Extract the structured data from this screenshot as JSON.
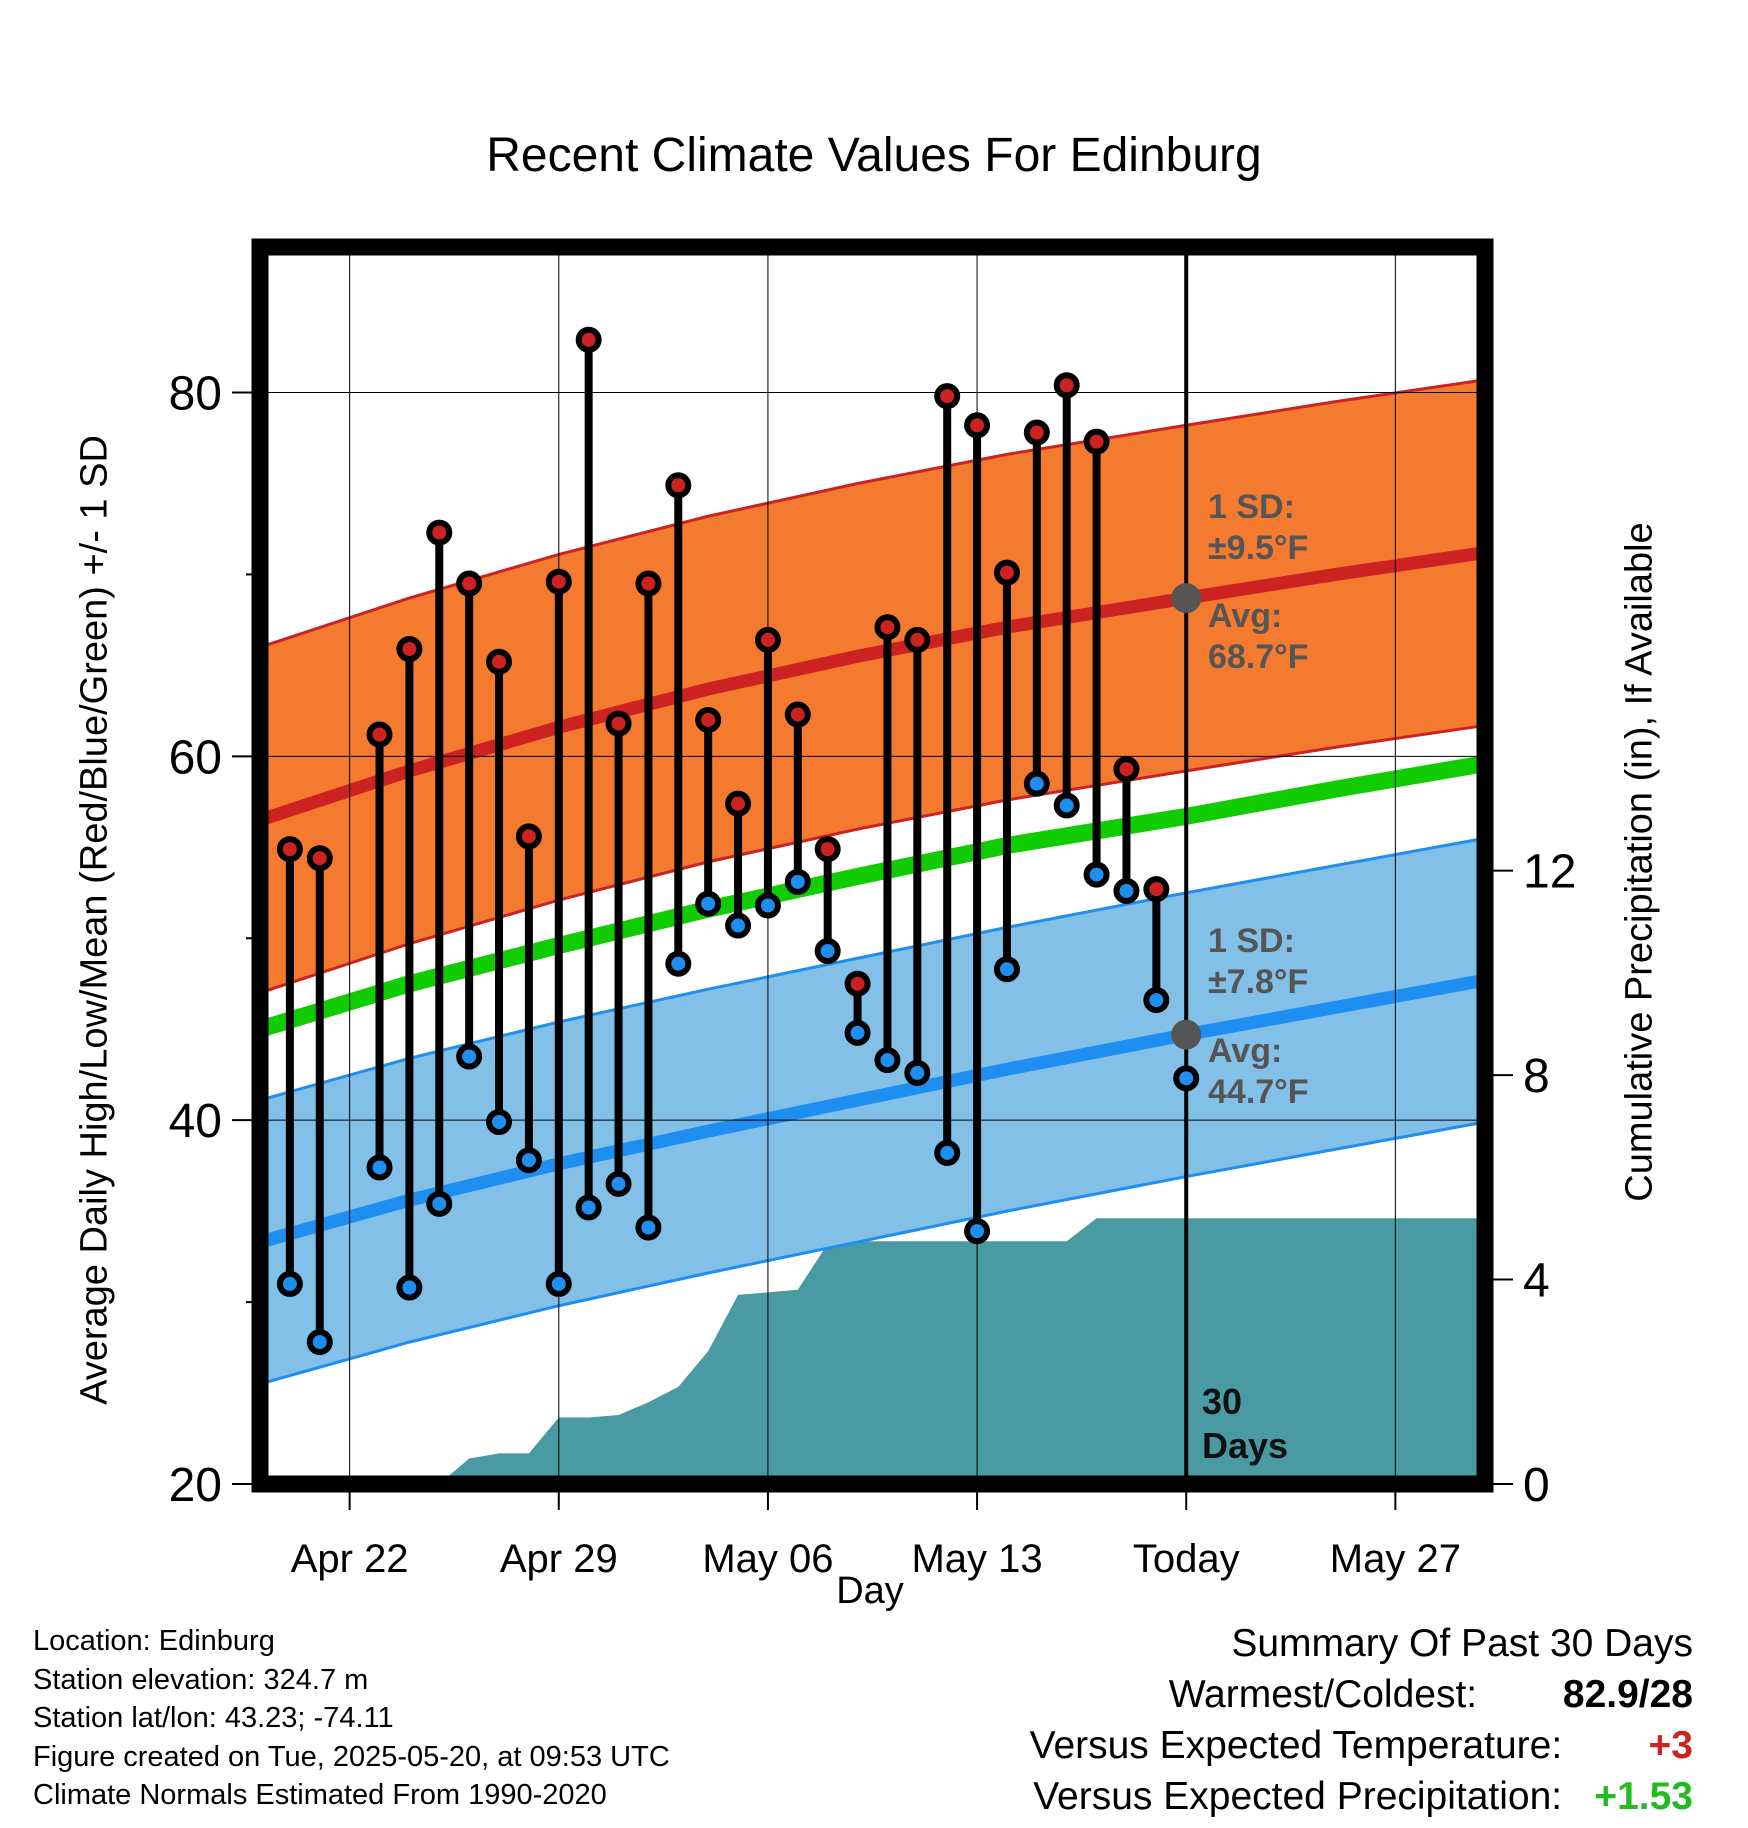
{
  "chart_data": {
    "type": "line",
    "title": "Recent Climate Values For Edinburg",
    "xlabel": "Day",
    "ylabel": "Average Daily High/Low/Mean (Red/Blue/Green) +/- 1 SD",
    "ylabel_right": "Cumulative Precipitation (in), If Available",
    "ylim": [
      20,
      88
    ],
    "ylim_right": [
      0,
      24.2
    ],
    "x_range_days": [
      "2025-04-19",
      "2025-05-30"
    ],
    "x_ticks": [
      {
        "date": "2025-04-22",
        "label": "Apr 22"
      },
      {
        "date": "2025-04-29",
        "label": "Apr 29"
      },
      {
        "date": "2025-05-06",
        "label": "May 06"
      },
      {
        "date": "2025-05-13",
        "label": "May 13"
      },
      {
        "date": "2025-05-20",
        "label": "Today"
      },
      {
        "date": "2025-05-27",
        "label": "May 27"
      }
    ],
    "y_ticks_left": [
      20,
      40,
      60,
      80
    ],
    "y_ticks_right": [
      0,
      4,
      8,
      12
    ],
    "grid": true,
    "today": "2025-05-20",
    "today_label": [
      "30",
      "Days"
    ],
    "normal_high": {
      "x": [
        "2025-04-19",
        "2025-04-24",
        "2025-04-29",
        "2025-05-04",
        "2025-05-09",
        "2025-05-14",
        "2025-05-20",
        "2025-05-25",
        "2025-05-30"
      ],
      "mean": [
        56.5,
        59.2,
        61.6,
        63.7,
        65.5,
        67.1,
        68.7,
        70.0,
        71.2
      ],
      "sd": 9.5,
      "color": "#f47a30",
      "line_color": "#cc2222"
    },
    "normal_low": {
      "x": [
        "2025-04-19",
        "2025-04-24",
        "2025-04-29",
        "2025-05-04",
        "2025-05-09",
        "2025-05-14",
        "2025-05-20",
        "2025-05-25",
        "2025-05-30"
      ],
      "mean": [
        33.3,
        35.6,
        37.6,
        39.4,
        41.1,
        42.8,
        44.7,
        46.2,
        47.7
      ],
      "sd": 7.8,
      "color": "#82c0e8",
      "line_color": "#1e8ff0"
    },
    "normal_mean": {
      "x": [
        "2025-04-19",
        "2025-04-24",
        "2025-04-29",
        "2025-05-04",
        "2025-05-09",
        "2025-05-14",
        "2025-05-20",
        "2025-05-25",
        "2025-05-30"
      ],
      "values": [
        45.0,
        47.5,
        49.6,
        51.6,
        53.4,
        55.1,
        56.7,
        58.2,
        59.6
      ],
      "color": "#11cc00"
    },
    "daily": {
      "dates": [
        "2025-04-20",
        "2025-04-21",
        "2025-04-23",
        "2025-04-24",
        "2025-04-25",
        "2025-04-26",
        "2025-04-27",
        "2025-04-28",
        "2025-04-29",
        "2025-04-30",
        "2025-05-01",
        "2025-05-02",
        "2025-05-03",
        "2025-05-04",
        "2025-05-05",
        "2025-05-06",
        "2025-05-07",
        "2025-05-08",
        "2025-05-09",
        "2025-05-10",
        "2025-05-11",
        "2025-05-12",
        "2025-05-13",
        "2025-05-14",
        "2025-05-15",
        "2025-05-16",
        "2025-05-17",
        "2025-05-18",
        "2025-05-19"
      ],
      "high": [
        54.9,
        54.4,
        61.2,
        65.9,
        72.3,
        69.5,
        65.2,
        55.6,
        69.6,
        82.9,
        61.8,
        69.5,
        74.9,
        62.0,
        57.4,
        66.4,
        62.3,
        54.9,
        47.5,
        67.1,
        66.4,
        79.8,
        78.2,
        70.1,
        77.8,
        80.4,
        77.3,
        59.3,
        52.7
      ],
      "low": [
        31.0,
        27.8,
        37.4,
        30.8,
        35.4,
        43.5,
        39.9,
        37.8,
        31.0,
        35.2,
        36.5,
        34.1,
        48.6,
        51.9,
        50.7,
        51.8,
        53.1,
        49.3,
        44.8,
        43.3,
        42.6,
        38.2,
        33.9,
        48.3,
        58.5,
        57.3,
        53.5,
        52.6,
        46.6
      ],
      "extra_low": [
        {
          "date": "2025-05-20",
          "value": 42.3
        }
      ],
      "high_color": "#cc2222",
      "low_color": "#1e8ff0"
    },
    "precip_cumulative": {
      "x": [
        "2025-04-19",
        "2025-04-25",
        "2025-04-26",
        "2025-04-27",
        "2025-04-28",
        "2025-04-29",
        "2025-04-30",
        "2025-05-01",
        "2025-05-02",
        "2025-05-03",
        "2025-05-04",
        "2025-05-05",
        "2025-05-06",
        "2025-05-07",
        "2025-05-08",
        "2025-05-09",
        "2025-05-10",
        "2025-05-13",
        "2025-05-16",
        "2025-05-17",
        "2025-05-20",
        "2025-05-30"
      ],
      "values": [
        0,
        0,
        0.5,
        0.6,
        0.6,
        1.3,
        1.3,
        1.35,
        1.6,
        1.9,
        2.6,
        3.7,
        3.75,
        3.8,
        4.7,
        4.75,
        4.75,
        4.75,
        4.75,
        5.2,
        5.2,
        5.2
      ],
      "color": "#4a9aa4"
    },
    "annotations": {
      "high_sd": [
        "1 SD:",
        "±9.5°F"
      ],
      "high_avg": [
        "Avg:",
        "68.7°F"
      ],
      "low_sd": [
        "1 SD:",
        "±7.8°F"
      ],
      "low_avg": [
        "Avg:",
        "44.7°F"
      ]
    }
  },
  "info": {
    "location": "Location: Edinburg",
    "elevation": "Station elevation: 324.7 m",
    "latlon": "Station lat/lon: 43.23; -74.11",
    "created": "Figure created on Tue, 2025-05-20, at 09:53 UTC",
    "normals": "Climate Normals Estimated From 1990-2020"
  },
  "summary": {
    "title": "Summary Of Past 30 Days",
    "warmest_label": "Warmest/Coldest:",
    "warmest_value": "82.9/28",
    "temp_label": "Versus Expected Temperature:",
    "temp_value": "+3",
    "precip_label": "Versus Expected Precipitation:",
    "precip_value": "+1.53"
  }
}
